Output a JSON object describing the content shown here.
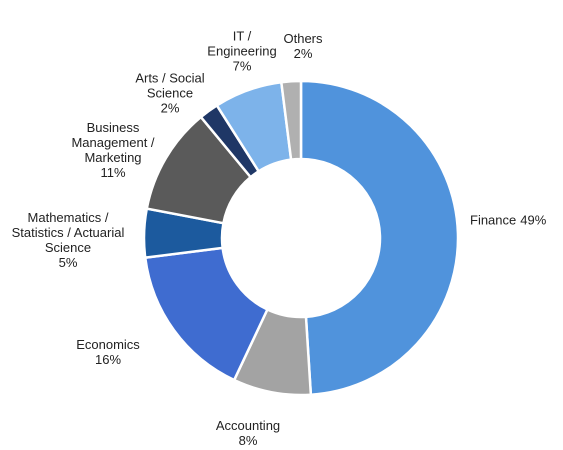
{
  "chart_data": {
    "type": "donut",
    "categories": [
      "Finance",
      "Accounting",
      "Economics",
      "Mathematics / Statistics / Actuarial Science",
      "Business Management / Marketing",
      "Arts / Social Science",
      "IT / Engineering",
      "Others"
    ],
    "values": [
      49,
      8,
      16,
      5,
      11,
      2,
      7,
      2
    ],
    "value_labels": [
      "49%",
      "8%",
      "16%",
      "5%",
      "11%",
      "2%",
      "7%",
      "2%"
    ],
    "colors": [
      "#5093dc",
      "#a3a3a3",
      "#3f6cd0",
      "#1c5a9e",
      "#5a5a5a",
      "#1f3766",
      "#7db3ea",
      "#b0b0b0"
    ]
  }
}
